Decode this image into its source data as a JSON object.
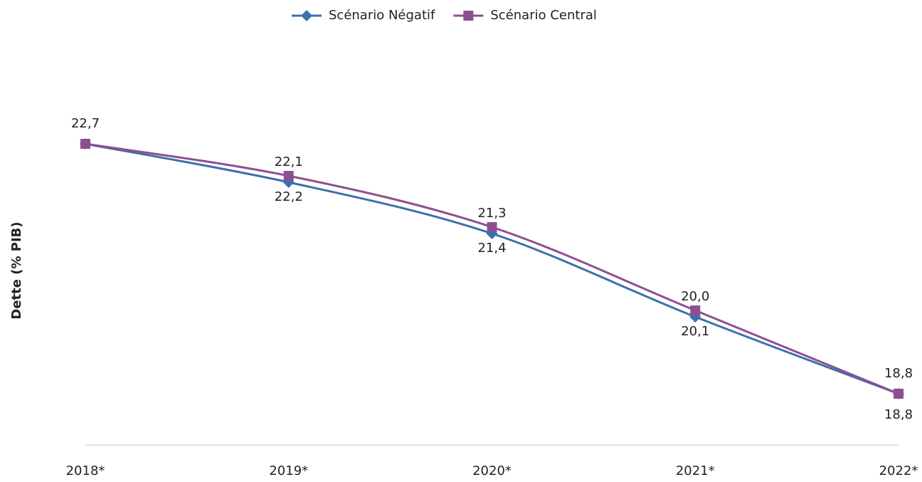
{
  "chart_data": {
    "type": "line",
    "y_label": "Dette (% PIB)",
    "categories": [
      "2018*",
      "2019*",
      "2020*",
      "2021*",
      "2022*"
    ],
    "series": [
      {
        "name": "Scénario Négatif",
        "color": "#3b70ae",
        "marker": "diamond",
        "values": [
          22.7,
          22.1,
          21.3,
          20.0,
          18.8
        ],
        "value_labels": [
          "22,7",
          "22,1",
          "21,3",
          "20,0",
          "18,8"
        ]
      },
      {
        "name": "Scénario Central",
        "color": "#8e4f91",
        "marker": "square",
        "values": [
          22.7,
          22.2,
          21.4,
          20.1,
          18.8
        ],
        "value_labels": [
          null,
          "22,2",
          "21,4",
          "20,1",
          "18,8"
        ]
      }
    ],
    "ylim": [
      18,
      24
    ],
    "legend": "top",
    "smooth": true
  }
}
